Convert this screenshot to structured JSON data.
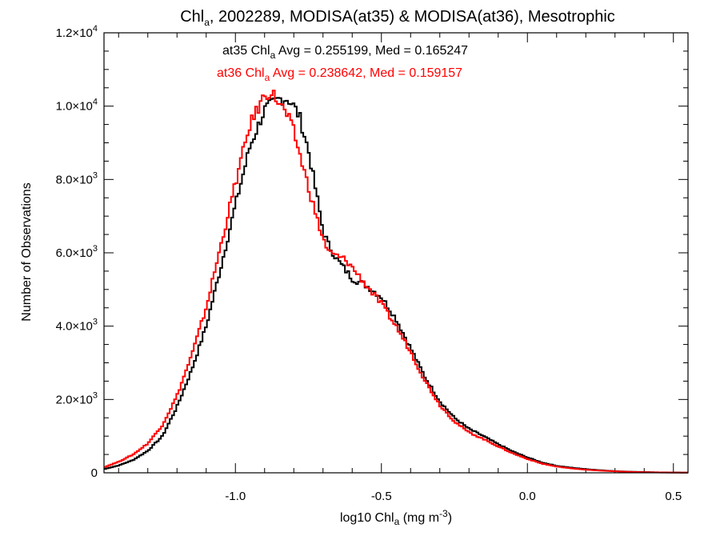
{
  "chart_data": {
    "type": "line",
    "step": true,
    "title": {
      "main": "Chl",
      "sub": "a",
      "rest": ", 2002289, MODISA(at35) & MODISA(at36), Mesotrophic"
    },
    "xlabel": {
      "main": "log10 Chl",
      "sub": "a",
      "rest": " (mg m",
      "sup": "-3",
      "tail": ")"
    },
    "ylabel": "Number of Observations",
    "xlim": [
      -1.45,
      0.55
    ],
    "ylim": [
      0,
      12000
    ],
    "xticks": [
      {
        "value": -1.0,
        "label": "-1.0"
      },
      {
        "value": -0.5,
        "label": "-0.5"
      },
      {
        "value": 0.0,
        "label": "0.0"
      },
      {
        "value": 0.5,
        "label": "0.5"
      }
    ],
    "yticks": [
      {
        "value": 0,
        "label": "0",
        "exp": ""
      },
      {
        "value": 2000,
        "label": "2.0×10",
        "exp": "3"
      },
      {
        "value": 4000,
        "label": "4.0×10",
        "exp": "3"
      },
      {
        "value": 6000,
        "label": "6.0×10",
        "exp": "3"
      },
      {
        "value": 8000,
        "label": "8.0×10",
        "exp": "3"
      },
      {
        "value": 10000,
        "label": "1.0×10",
        "exp": "4"
      },
      {
        "value": 12000,
        "label": "1.2×10",
        "exp": "4"
      }
    ],
    "annotations": [
      {
        "series": "at35",
        "color": "#000000",
        "prefix": "at35 Chl",
        "sub": "a",
        "text": " Avg = 0.255199, Med = 0.165247"
      },
      {
        "series": "at36",
        "color": "#ff0000",
        "prefix": "at36 Chl",
        "sub": "a",
        "text": " Avg = 0.238642, Med = 0.159157"
      }
    ],
    "series": [
      {
        "name": "at35",
        "color": "#000000",
        "x": [
          -1.45,
          -1.4,
          -1.35,
          -1.3,
          -1.25,
          -1.2,
          -1.15,
          -1.1,
          -1.05,
          -1.0,
          -0.95,
          -0.9,
          -0.85,
          -0.82,
          -0.8,
          -0.78,
          -0.75,
          -0.72,
          -0.7,
          -0.68,
          -0.65,
          -0.62,
          -0.6,
          -0.55,
          -0.5,
          -0.45,
          -0.4,
          -0.35,
          -0.3,
          -0.25,
          -0.2,
          -0.15,
          -0.1,
          -0.05,
          0.0,
          0.05,
          0.1,
          0.15,
          0.2,
          0.25,
          0.3,
          0.35,
          0.4,
          0.45,
          0.5,
          0.55
        ],
        "y": [
          100,
          200,
          350,
          600,
          1000,
          1800,
          2800,
          4000,
          5600,
          7300,
          8900,
          9900,
          10200,
          10200,
          10000,
          9700,
          8800,
          7500,
          6600,
          6200,
          5800,
          5500,
          5300,
          5100,
          4800,
          4200,
          3400,
          2600,
          1950,
          1500,
          1200,
          1000,
          780,
          580,
          420,
          280,
          190,
          140,
          100,
          70,
          45,
          30,
          20,
          12,
          8,
          5
        ]
      },
      {
        "name": "at36",
        "color": "#ff0000",
        "x": [
          -1.45,
          -1.4,
          -1.35,
          -1.3,
          -1.25,
          -1.2,
          -1.15,
          -1.1,
          -1.05,
          -1.0,
          -0.95,
          -0.9,
          -0.88,
          -0.85,
          -0.82,
          -0.8,
          -0.78,
          -0.75,
          -0.72,
          -0.7,
          -0.68,
          -0.65,
          -0.62,
          -0.6,
          -0.55,
          -0.5,
          -0.45,
          -0.4,
          -0.35,
          -0.3,
          -0.25,
          -0.2,
          -0.15,
          -0.1,
          -0.05,
          0.0,
          0.05,
          0.1,
          0.15,
          0.2,
          0.25,
          0.3,
          0.35,
          0.4,
          0.45,
          0.5,
          0.55
        ],
        "y": [
          150,
          300,
          500,
          800,
          1300,
          2100,
          3200,
          4500,
          6200,
          7900,
          9500,
          10300,
          10400,
          10100,
          9700,
          9300,
          8700,
          7800,
          6900,
          6400,
          6000,
          5900,
          5800,
          5600,
          5100,
          4600,
          4000,
          3300,
          2500,
          1850,
          1400,
          1100,
          920,
          720,
          530,
          380,
          250,
          170,
          120,
          85,
          60,
          40,
          25,
          15,
          10,
          6,
          4
        ]
      }
    ]
  }
}
